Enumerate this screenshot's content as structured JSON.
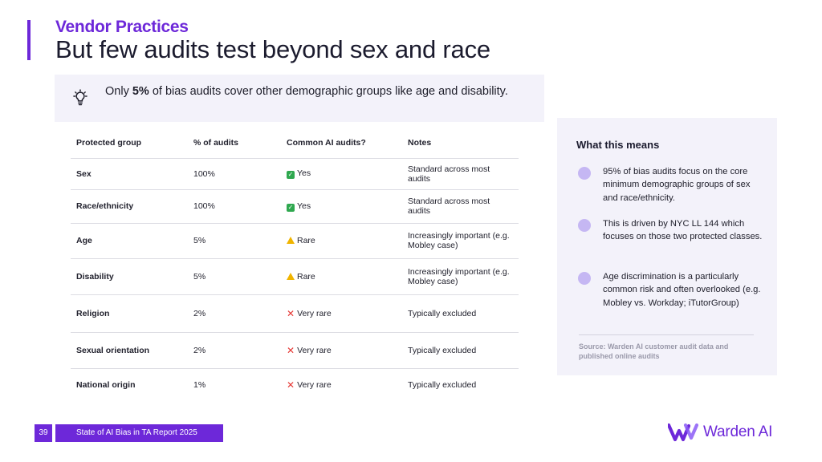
{
  "header": {
    "kicker": "Vendor Practices",
    "headline": "But few audits test beyond sex and race"
  },
  "callout": {
    "icon": "lightbulb-icon",
    "text_before": "Only ",
    "text_bold": "5%",
    "text_after": " of bias audits cover other demographic groups like age and disability."
  },
  "table": {
    "headers": [
      "Protected group",
      "% of audits",
      "Common AI audits?",
      "Notes"
    ],
    "rows": [
      {
        "group": "Sex",
        "percent": "100%",
        "status": "yes",
        "common": "Yes",
        "notes": "Standard across most audits"
      },
      {
        "group": "Race/ethnicity",
        "percent": "100%",
        "status": "yes",
        "common": "Yes",
        "notes": "Standard across most audits"
      },
      {
        "group": "Age",
        "percent": "5%",
        "status": "warn",
        "common": "Rare",
        "notes": "Increasingly important (e.g. Mobley case)"
      },
      {
        "group": "Disability",
        "percent": "5%",
        "status": "warn",
        "common": "Rare",
        "notes": "Increasingly important (e.g. Mobley case)"
      },
      {
        "group": "Religion",
        "percent": "2%",
        "status": "no",
        "common": "Very rare",
        "notes": "Typically excluded"
      },
      {
        "group": "Sexual orientation",
        "percent": "2%",
        "status": "no",
        "common": "Very rare",
        "notes": "Typically excluded"
      },
      {
        "group": "National origin",
        "percent": "1%",
        "status": "no",
        "common": "Very rare",
        "notes": "Typically excluded"
      }
    ],
    "status_colors": {
      "yes": "#2fa84f",
      "warn": "#f0b400",
      "no": "#e53935"
    }
  },
  "panel": {
    "title": "What this means",
    "items": [
      "95% of bias audits focus on the core minimum demographic groups of sex and race/ethnicity.",
      "This is driven by NYC LL 144 which focuses on those two protected classes.",
      "Age discrimination is a particularly common risk and often overlooked (e.g. Mobley vs. Workday; iTutorGroup)"
    ],
    "source": "Source: Warden AI customer audit data and published online audits"
  },
  "footer": {
    "page_number": "39",
    "report_title": "State of AI Bias in TA Report 2025"
  },
  "logo": {
    "wordmark": "Warden AI",
    "icon": "warden-w-logo-icon"
  },
  "colors": {
    "accent": "#6d28d9",
    "panel_bg": "#f3f2fa",
    "bullet": "#c5b7f3"
  }
}
